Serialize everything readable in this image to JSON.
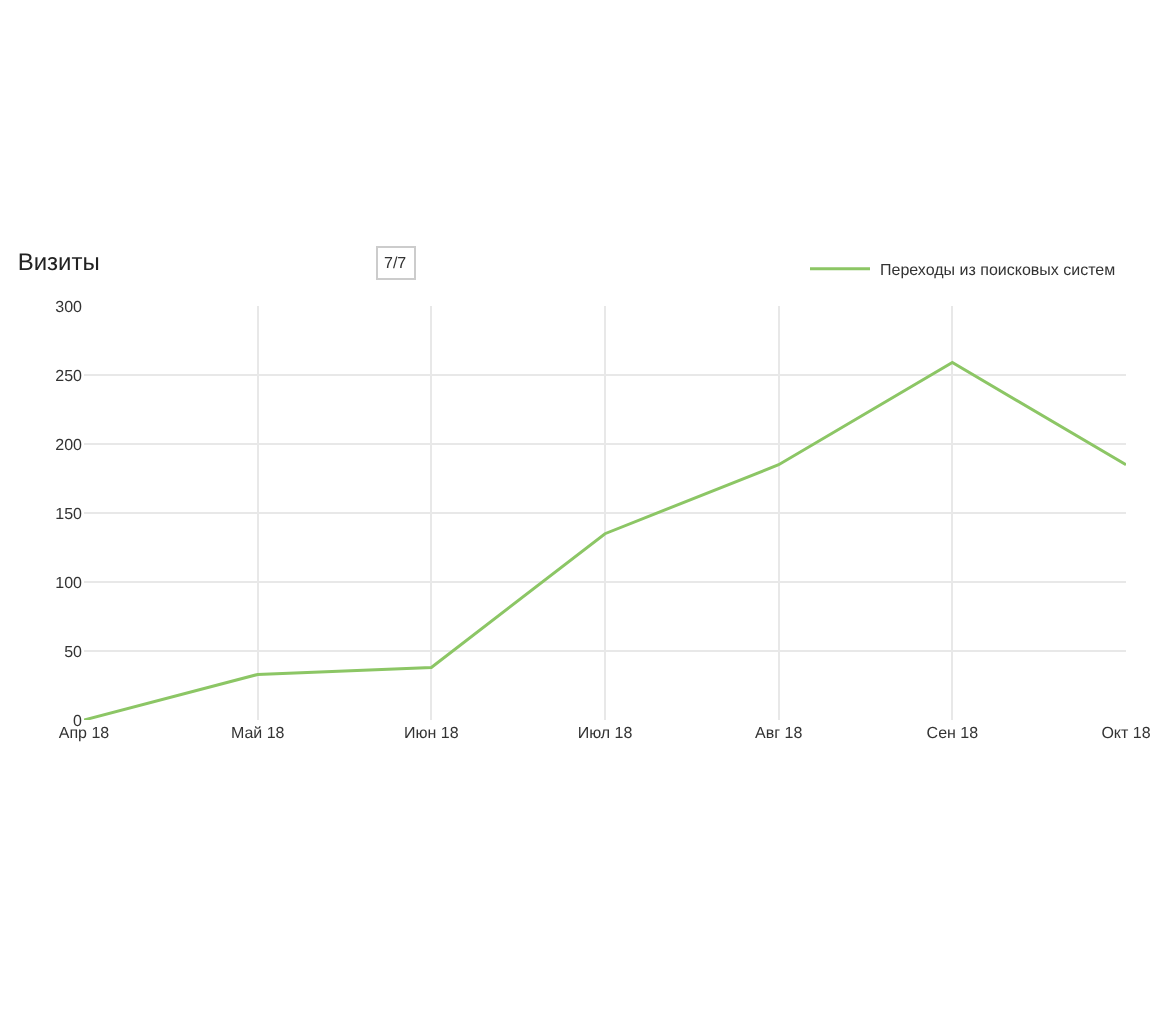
{
  "chart_data": {
    "type": "line",
    "title": "Визиты",
    "annotations": [
      "7/7"
    ],
    "categories": [
      "Апр 18",
      "Май 18",
      "Июн 18",
      "Июл 18",
      "Авг 18",
      "Сен 18",
      "Окт 18"
    ],
    "series": [
      {
        "name": "Переходы из поисковых систем",
        "color": "#8cc665",
        "values": [
          0,
          33,
          38,
          135,
          185,
          259,
          185
        ]
      }
    ],
    "ylim": [
      0,
      300
    ],
    "yticks": [
      0,
      50,
      100,
      150,
      200,
      250,
      300
    ],
    "grid": true,
    "legend": "top right",
    "marker": "none",
    "line_style": "solid"
  }
}
